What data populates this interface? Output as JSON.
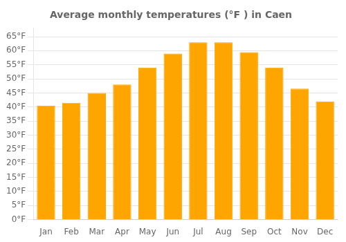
{
  "chart_data": {
    "type": "bar",
    "title": "Average monthly temperatures (°F ) in Caen",
    "categories": [
      "Jan",
      "Feb",
      "Mar",
      "Apr",
      "May",
      "Jun",
      "Jul",
      "Aug",
      "Sep",
      "Oct",
      "Nov",
      "Dec"
    ],
    "values": [
      40.5,
      41.5,
      45.0,
      48.0,
      54.0,
      59.0,
      63.0,
      63.0,
      59.5,
      54.0,
      46.5,
      42.0
    ],
    "color": "#FFA500",
    "ylim": [
      0,
      68
    ],
    "yticks": [
      {
        "value": 0,
        "label": "0°F"
      },
      {
        "value": 5,
        "label": "5°F"
      },
      {
        "value": 10,
        "label": "10°F"
      },
      {
        "value": 15,
        "label": "15°F"
      },
      {
        "value": 20,
        "label": "20°F"
      },
      {
        "value": 25,
        "label": "25°F"
      },
      {
        "value": 30,
        "label": "30°F"
      },
      {
        "value": 35,
        "label": "35°F"
      },
      {
        "value": 40,
        "label": "40°F"
      },
      {
        "value": 45,
        "label": "45°F"
      },
      {
        "value": 50,
        "label": "50°F"
      },
      {
        "value": 55,
        "label": "55°F"
      },
      {
        "value": 60,
        "label": "60°F"
      },
      {
        "value": 65,
        "label": "65°F"
      }
    ],
    "grid": true
  }
}
